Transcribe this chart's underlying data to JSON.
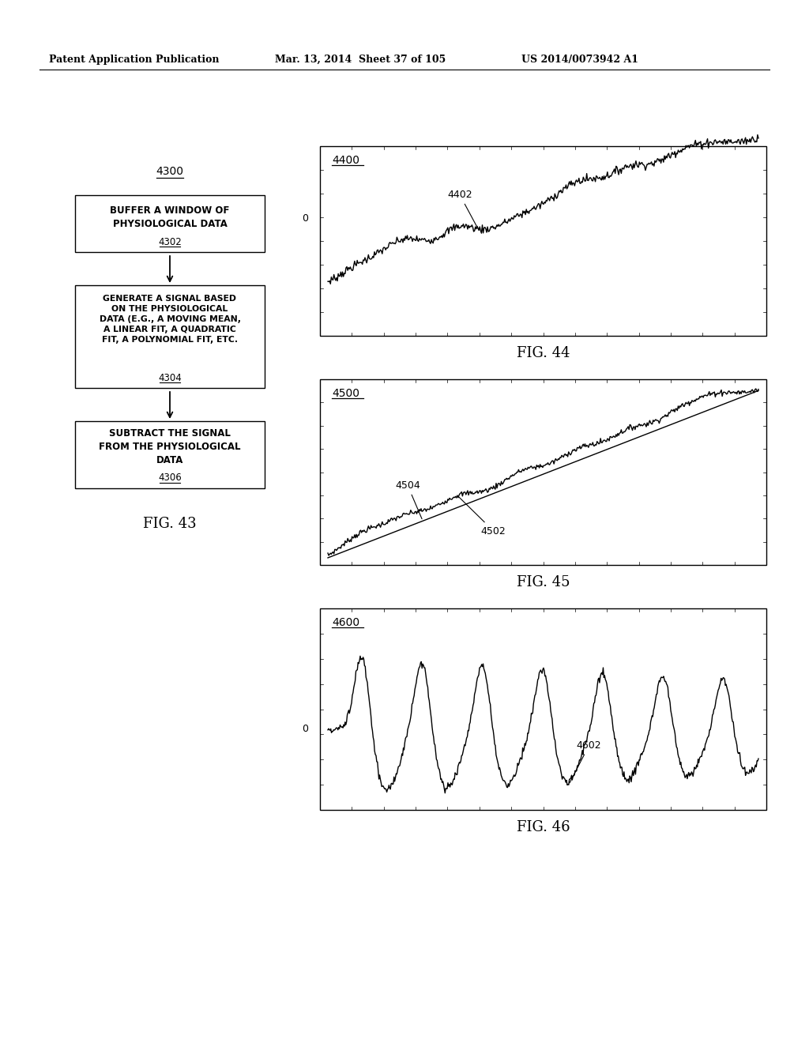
{
  "header_left": "Patent Application Publication",
  "header_mid": "Mar. 13, 2014  Sheet 37 of 105",
  "header_right": "US 2014/0073942 A1",
  "bg_color": "#ffffff",
  "text_color": "#000000",
  "fig43_label": "FIG. 43",
  "fig44_label": "FIG. 44",
  "fig45_label": "FIG. 45",
  "fig46_label": "FIG. 46",
  "fig44_title": "4400",
  "fig44_curve_label": "4402",
  "fig45_title": "4500",
  "fig45_curve_label": "4502",
  "fig45_line_label": "4504",
  "fig46_title": "4600",
  "fig46_curve_label": "4602",
  "flowchart_title": "4300",
  "box1_lines": [
    "BUFFER A WINDOW OF",
    "PHYSIOLOGICAL DATA"
  ],
  "box1_ref": "4302",
  "box2_lines": [
    "GENERATE A SIGNAL BASED",
    "ON THE PHYSIOLOGICAL",
    "DATA (E.G., A MOVING MEAN,",
    "A LINEAR FIT, A QUADRATIC",
    "FIT, A POLYNOMIAL FIT, ETC."
  ],
  "box2_ref": "4304",
  "box3_lines": [
    "SUBTRACT THE SIGNAL",
    "FROM THE PHYSIOLOGICAL",
    "DATA"
  ],
  "box3_ref": "4306"
}
